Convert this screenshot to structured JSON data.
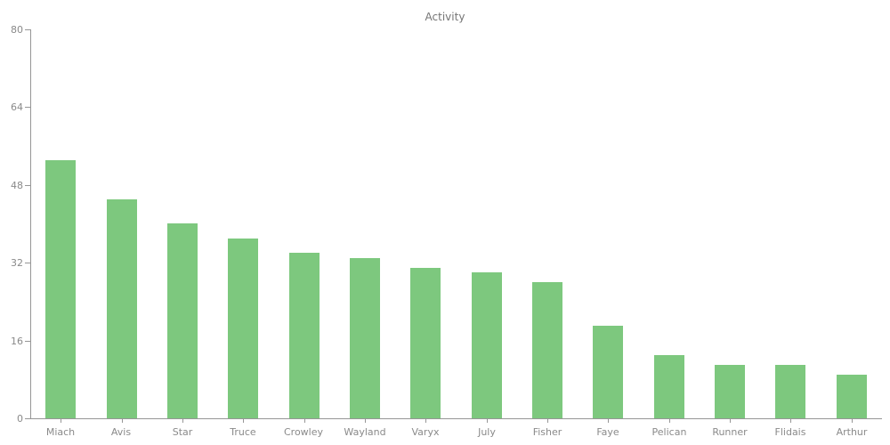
{
  "chart_data": {
    "type": "bar",
    "title": "Activity",
    "categories": [
      "Miach",
      "Avis",
      "Star",
      "Truce",
      "Crowley",
      "Wayland",
      "Varyx",
      "July",
      "Fisher",
      "Faye",
      "Pelican",
      "Runner",
      "Flidais",
      "Arthur"
    ],
    "values": [
      53,
      45,
      40,
      37,
      34,
      33,
      31,
      30,
      28,
      19,
      13,
      11,
      11,
      9
    ],
    "xlabel": "",
    "ylabel": "",
    "ylim": [
      0,
      80
    ],
    "yticks": [
      0,
      16,
      32,
      48,
      64,
      80
    ],
    "grid": false,
    "legend": "none",
    "colors": {
      "bar": "#7dc87e",
      "axis": "#969696",
      "tick_label": "#8a8a8a",
      "title": "#757575",
      "background": "#ffffff"
    }
  }
}
